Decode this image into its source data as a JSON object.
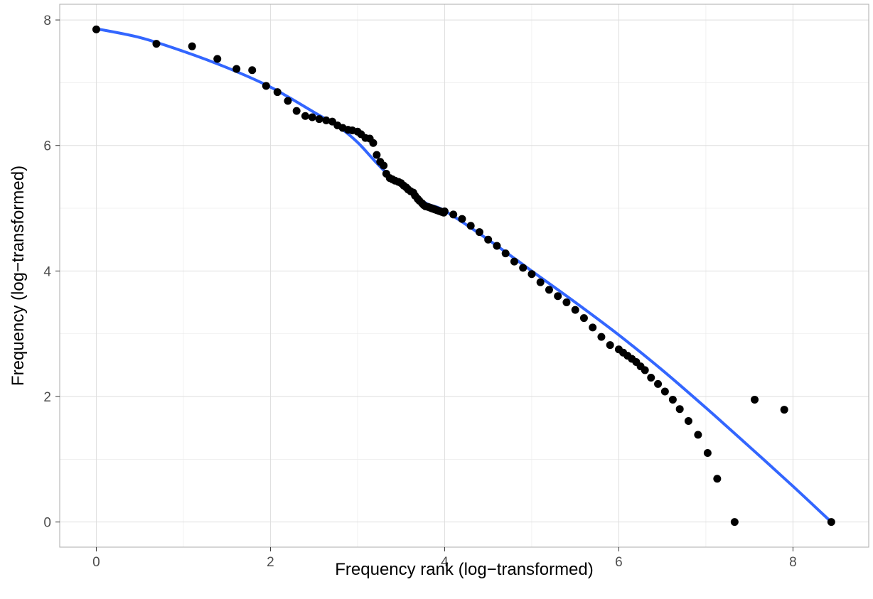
{
  "chart_data": {
    "type": "scatter",
    "title": "",
    "xlabel": "Frequency rank (log−transformed)",
    "ylabel": "Frequency (log−transformed)",
    "xlim": [
      -0.42,
      8.87
    ],
    "ylim": [
      -0.4,
      8.25
    ],
    "x_ticks": [
      "0",
      "2",
      "4",
      "6",
      "8"
    ],
    "y_ticks": [
      "0",
      "2",
      "4",
      "6",
      "8"
    ],
    "grid": true,
    "legend": "none",
    "series": [
      {
        "kind": "points",
        "color": "#000000",
        "x": [
          0,
          0.69,
          1.1,
          1.39,
          1.61,
          1.79,
          1.95,
          2.08,
          2.2,
          2.3,
          2.4,
          2.48,
          2.56,
          2.64,
          2.71,
          2.77,
          2.83,
          2.89,
          2.94,
          3.0,
          3.04,
          3.09,
          3.14,
          3.18,
          3.22,
          3.26,
          3.3,
          3.33,
          3.37,
          3.4,
          3.43,
          3.47,
          3.5,
          3.53,
          3.56,
          3.58,
          3.61,
          3.64,
          3.66,
          3.69,
          3.71,
          3.74,
          3.76,
          3.78,
          3.81,
          3.83,
          3.85,
          3.87,
          3.89,
          3.91,
          3.93,
          3.95,
          3.97,
          3.99,
          4.0,
          4.1,
          4.2,
          4.3,
          4.4,
          4.5,
          4.6,
          4.7,
          4.8,
          4.9,
          5.0,
          5.1,
          5.2,
          5.3,
          5.4,
          5.5,
          5.6,
          5.7,
          5.8,
          5.9,
          6.0,
          6.05,
          6.1,
          6.15,
          6.2,
          6.25,
          6.3,
          6.37,
          6.45,
          6.53,
          6.62,
          6.7,
          6.8,
          6.91,
          7.02,
          7.13,
          7.33,
          7.56,
          7.9,
          8.44
        ],
        "y": [
          7.85,
          7.62,
          7.58,
          7.38,
          7.22,
          7.2,
          6.95,
          6.85,
          6.71,
          6.55,
          6.47,
          6.45,
          6.42,
          6.4,
          6.38,
          6.32,
          6.28,
          6.25,
          6.24,
          6.22,
          6.18,
          6.12,
          6.11,
          6.04,
          5.85,
          5.74,
          5.68,
          5.55,
          5.48,
          5.46,
          5.44,
          5.42,
          5.4,
          5.36,
          5.33,
          5.3,
          5.27,
          5.25,
          5.2,
          5.15,
          5.12,
          5.08,
          5.05,
          5.03,
          5.02,
          5.01,
          5.0,
          4.99,
          4.98,
          4.97,
          4.96,
          4.95,
          4.94,
          4.93,
          4.95,
          4.9,
          4.83,
          4.72,
          4.62,
          4.5,
          4.4,
          4.28,
          4.15,
          4.05,
          3.95,
          3.82,
          3.7,
          3.6,
          3.5,
          3.38,
          3.25,
          3.1,
          2.95,
          2.82,
          2.75,
          2.7,
          2.65,
          2.6,
          2.55,
          2.48,
          2.42,
          2.3,
          2.2,
          2.08,
          1.95,
          1.8,
          1.61,
          1.39,
          1.1,
          0.69,
          0.0,
          1.95,
          1.79,
          0.0
        ]
      },
      {
        "kind": "smooth",
        "color": "#3366ff",
        "x": [
          0,
          0.5,
          1.0,
          1.5,
          2.0,
          2.5,
          2.8,
          3.0,
          3.2,
          3.4,
          3.6,
          3.8,
          4.0,
          4.5,
          5.0,
          5.5,
          6.0,
          6.5,
          7.0,
          7.5,
          8.0,
          8.44
        ],
        "y": [
          7.86,
          7.72,
          7.5,
          7.24,
          6.93,
          6.53,
          6.28,
          6.05,
          5.75,
          5.47,
          5.26,
          5.07,
          4.96,
          4.5,
          4.0,
          3.5,
          2.98,
          2.42,
          1.82,
          1.2,
          0.57,
          0.0
        ]
      }
    ]
  }
}
